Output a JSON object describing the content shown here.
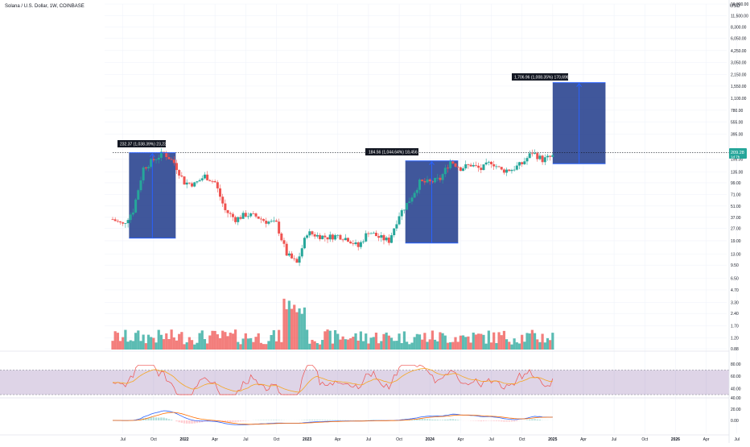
{
  "header": {
    "symbol_title": "Solana / U.S. Dollar, 1W, COINBASE",
    "currency": "USD"
  },
  "price_axis": {
    "labels": [
      "16,000.00",
      "11,500.00",
      "8,300.00",
      "6,050.00",
      "4,250.00",
      "3,050.00",
      "2,150.00",
      "1,550.00",
      "1,100.00",
      "780.00",
      "555.00",
      "395.00",
      "195.00",
      "135.00",
      "99.00",
      "71.00",
      "51.00",
      "37.00",
      "27.00",
      "19.00",
      "13.00",
      "9.50",
      "6.50",
      "4.70",
      "3.30",
      "2.40",
      "1.70",
      "1.20",
      "0.88"
    ],
    "current_price": "209.28",
    "current_sub": "1d 7h"
  },
  "time_axis": {
    "labels": [
      "Jul",
      "Oct",
      "2022",
      "Apr",
      "Jul",
      "Oct",
      "2023",
      "Apr",
      "Jul",
      "Oct",
      "2024",
      "Apr",
      "Jul",
      "Oct",
      "2025",
      "Apr",
      "Jul",
      "Oct",
      "2026",
      "Apr",
      "Jul",
      "Oct",
      "20"
    ]
  },
  "rsi_axis": {
    "labels": [
      "80.00",
      "60.00",
      "40.00"
    ]
  },
  "macd_axis": {
    "labels": [
      "40.00",
      "20.00",
      "0.00"
    ]
  },
  "measurements": [
    {
      "label": "232.37 (1,038.39%) 23,237"
    },
    {
      "label": "184.56 (1,044.64%) 18,456"
    },
    {
      "label": "1,706.96 (1,008.35%) 170,696"
    }
  ],
  "colors": {
    "up": "#26a69a",
    "down": "#ef5350",
    "measure_fill": "#1e3a8a",
    "measure_line": "#2962ff",
    "rsi_bg": "#5b2a86",
    "rsi_line": "#f6a623",
    "rsi_rsi": "#ef5350",
    "macd_line": "#2962ff",
    "macd_signal": "#ff6d00"
  },
  "chart_data": {
    "type": "candlestick",
    "title": "Solana / U.S. Dollar, 1W, COINBASE",
    "y_scale": "log",
    "ylim": [
      0.88,
      16000
    ],
    "x_range": [
      "2021-06",
      "2026-06"
    ],
    "weekly_close_path": [
      {
        "date": "2021-06",
        "close": 35
      },
      {
        "date": "2021-07",
        "close": 30
      },
      {
        "date": "2021-08",
        "close": 45
      },
      {
        "date": "2021-09",
        "close": 150
      },
      {
        "date": "2021-10",
        "close": 190
      },
      {
        "date": "2021-11",
        "close": 232
      },
      {
        "date": "2021-12",
        "close": 175
      },
      {
        "date": "2022-01",
        "close": 100
      },
      {
        "date": "2022-02",
        "close": 95
      },
      {
        "date": "2022-03",
        "close": 120
      },
      {
        "date": "2022-04",
        "close": 100
      },
      {
        "date": "2022-05",
        "close": 45
      },
      {
        "date": "2022-06",
        "close": 35
      },
      {
        "date": "2022-07",
        "close": 40
      },
      {
        "date": "2022-08",
        "close": 38
      },
      {
        "date": "2022-09",
        "close": 33
      },
      {
        "date": "2022-10",
        "close": 31
      },
      {
        "date": "2022-11",
        "close": 13
      },
      {
        "date": "2022-12",
        "close": 10
      },
      {
        "date": "2023-01",
        "close": 24
      },
      {
        "date": "2023-02",
        "close": 22
      },
      {
        "date": "2023-03",
        "close": 21
      },
      {
        "date": "2023-04",
        "close": 22
      },
      {
        "date": "2023-05",
        "close": 20
      },
      {
        "date": "2023-06",
        "close": 16
      },
      {
        "date": "2023-07",
        "close": 25
      },
      {
        "date": "2023-08",
        "close": 21
      },
      {
        "date": "2023-09",
        "close": 19
      },
      {
        "date": "2023-10",
        "close": 40
      },
      {
        "date": "2023-11",
        "close": 60
      },
      {
        "date": "2023-12",
        "close": 100
      },
      {
        "date": "2024-01",
        "close": 100
      },
      {
        "date": "2024-02",
        "close": 110
      },
      {
        "date": "2024-03",
        "close": 185
      },
      {
        "date": "2024-04",
        "close": 150
      },
      {
        "date": "2024-05",
        "close": 165
      },
      {
        "date": "2024-06",
        "close": 145
      },
      {
        "date": "2024-07",
        "close": 180
      },
      {
        "date": "2024-08",
        "close": 140
      },
      {
        "date": "2024-09",
        "close": 145
      },
      {
        "date": "2024-10",
        "close": 170
      },
      {
        "date": "2024-11",
        "close": 235
      },
      {
        "date": "2024-12",
        "close": 190
      },
      {
        "date": "2025-01",
        "close": 209.28
      }
    ],
    "measures": [
      {
        "from_price": 20.5,
        "to_price": 232.37,
        "change": "232.37 (1,038.39%) 23,237"
      },
      {
        "from_price": 17.8,
        "to_price": 184.56,
        "change": "184.56 (1,044.64%) 18,456"
      },
      {
        "from_price": 170,
        "to_price": 1706.96,
        "change": "1,706.96 (1,008.35%) 170,696"
      }
    ],
    "indicators": [
      "Volume",
      "RSI",
      "MACD"
    ]
  }
}
